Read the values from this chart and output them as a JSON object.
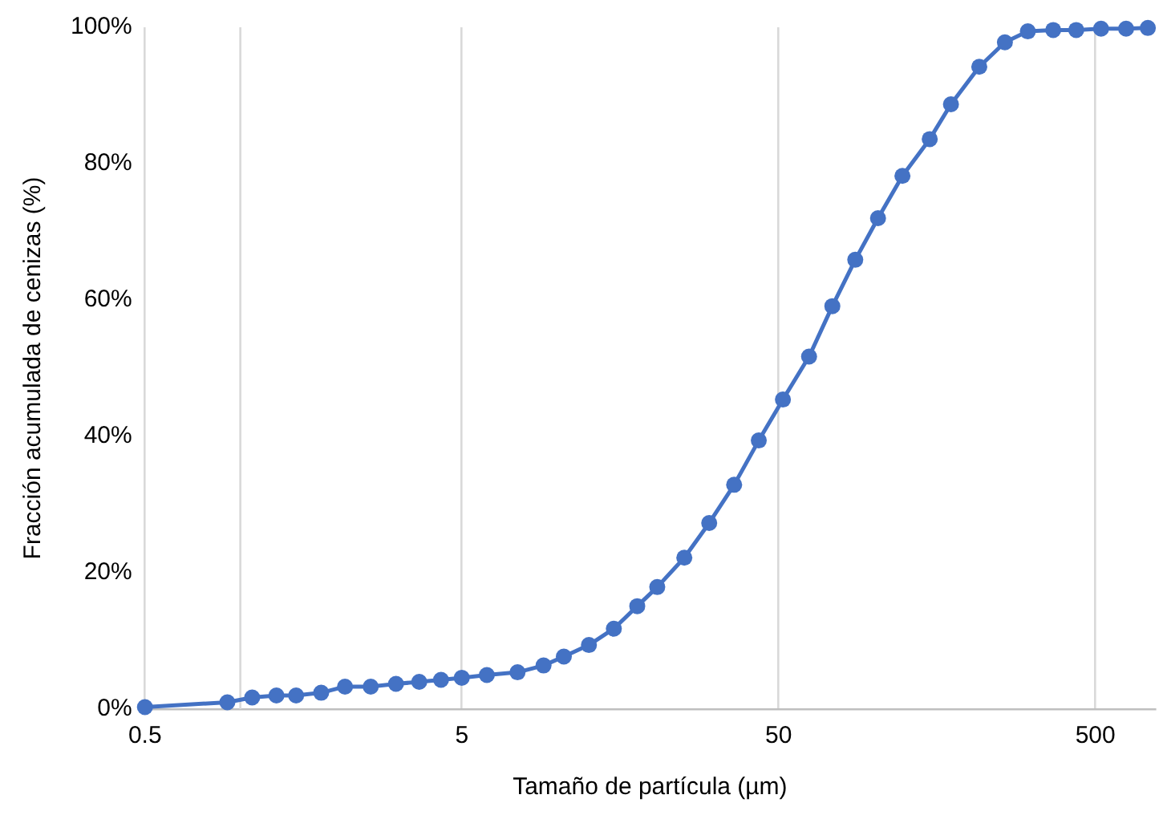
{
  "chart_data": {
    "type": "line",
    "xlabel": "Tamaño de partícula (µm)",
    "ylabel": "Fracción acumulada de cenizas (%)",
    "x": [
      0.5,
      0.91,
      1.09,
      1.3,
      1.5,
      1.8,
      2.14,
      2.58,
      3.1,
      3.67,
      4.3,
      5.0,
      6.0,
      7.5,
      9.06,
      10.5,
      12.6,
      15.1,
      17.9,
      20.7,
      25.2,
      30.2,
      36.2,
      43.3,
      51.6,
      62.4,
      73.9,
      87.3,
      103,
      123,
      150,
      175,
      215,
      259,
      306,
      368,
      435,
      521,
      625,
      732
    ],
    "series": [
      {
        "color": "#4472c4",
        "values": [
          0.3,
          1.0,
          1.7,
          2.0,
          2.0,
          2.4,
          3.3,
          3.3,
          3.7,
          4.0,
          4.3,
          4.6,
          5.0,
          5.4,
          6.4,
          7.7,
          9.4,
          11.8,
          15.1,
          17.9,
          22.2,
          27.3,
          32.9,
          39.4,
          45.4,
          51.7,
          59.1,
          65.9,
          72.0,
          78.2,
          83.6,
          88.7,
          94.2,
          97.8,
          99.4,
          99.6,
          99.6,
          99.8,
          99.8,
          99.9
        ]
      }
    ],
    "log": "x",
    "xlim": [
      0.5,
      771
    ],
    "xticks": [
      0.5,
      5,
      50,
      500
    ],
    "ylim": [
      0,
      100
    ],
    "yticks": [
      {
        "value": 0,
        "label": "0%"
      },
      {
        "value": 20,
        "label": "20%"
      },
      {
        "value": 40,
        "label": "40%"
      },
      {
        "value": 60,
        "label": "60%"
      },
      {
        "value": 80,
        "label": "80%"
      },
      {
        "value": 100,
        "label": "100%"
      }
    ],
    "grid": "x",
    "marker": "circle",
    "line_style": "solid",
    "legend": false,
    "ref_lines": [
      {
        "axis": "x",
        "value": 1,
        "color": "#d9d9d9"
      }
    ]
  }
}
